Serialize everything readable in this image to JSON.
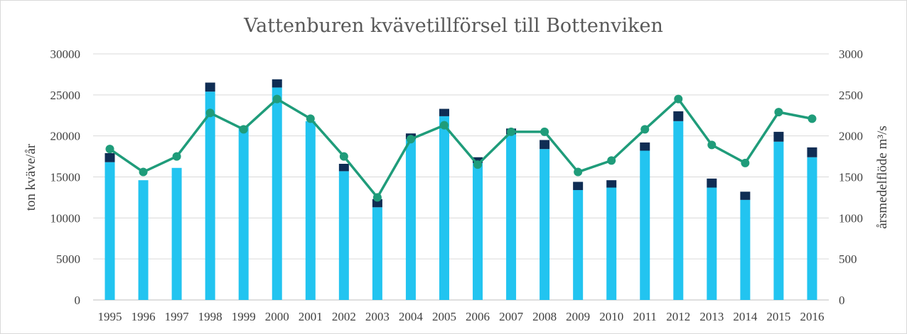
{
  "chart_data": {
    "type": "bar",
    "title": "Vattenburen kvävetillförsel till Bottenviken",
    "ylabel": "ton kväve/år",
    "y2label": "årsmedelflöde m³/s",
    "ylim": [
      0,
      30000
    ],
    "y2lim": [
      0,
      3000
    ],
    "yticks": [
      0,
      5000,
      10000,
      15000,
      20000,
      25000,
      30000
    ],
    "y2ticks": [
      0,
      500,
      1000,
      1500,
      2000,
      2500,
      3000
    ],
    "grid": true,
    "stacked": true,
    "categories": [
      "1995",
      "1996",
      "1997",
      "1998",
      "1999",
      "2000",
      "2001",
      "2002",
      "2003",
      "2004",
      "2005",
      "2006",
      "2007",
      "2008",
      "2009",
      "2010",
      "2011",
      "2012",
      "2013",
      "2014",
      "2015",
      "2016"
    ],
    "series": [
      {
        "type": "bar",
        "axis": "left",
        "color": "#22C4F0",
        "values": [
          16800,
          14600,
          16100,
          25400,
          21200,
          25900,
          21800,
          15700,
          11300,
          19600,
          22400,
          16700,
          20200,
          18400,
          13400,
          13700,
          18200,
          21800,
          13700,
          12200,
          19300,
          17400
        ]
      },
      {
        "type": "bar",
        "axis": "left",
        "color": "#0F2D54",
        "values": [
          1100,
          0,
          0,
          1100,
          0,
          1000,
          0,
          900,
          1000,
          700,
          900,
          700,
          700,
          1100,
          1000,
          900,
          1000,
          1200,
          1100,
          1000,
          1200,
          1200
        ]
      },
      {
        "type": "line",
        "axis": "right",
        "color": "#1F9C7A",
        "values": [
          1840,
          1560,
          1750,
          2280,
          2080,
          2450,
          2210,
          1750,
          1250,
          1960,
          2130,
          1650,
          2050,
          2050,
          1560,
          1700,
          2080,
          2450,
          1890,
          1670,
          2290,
          2210
        ]
      }
    ]
  }
}
